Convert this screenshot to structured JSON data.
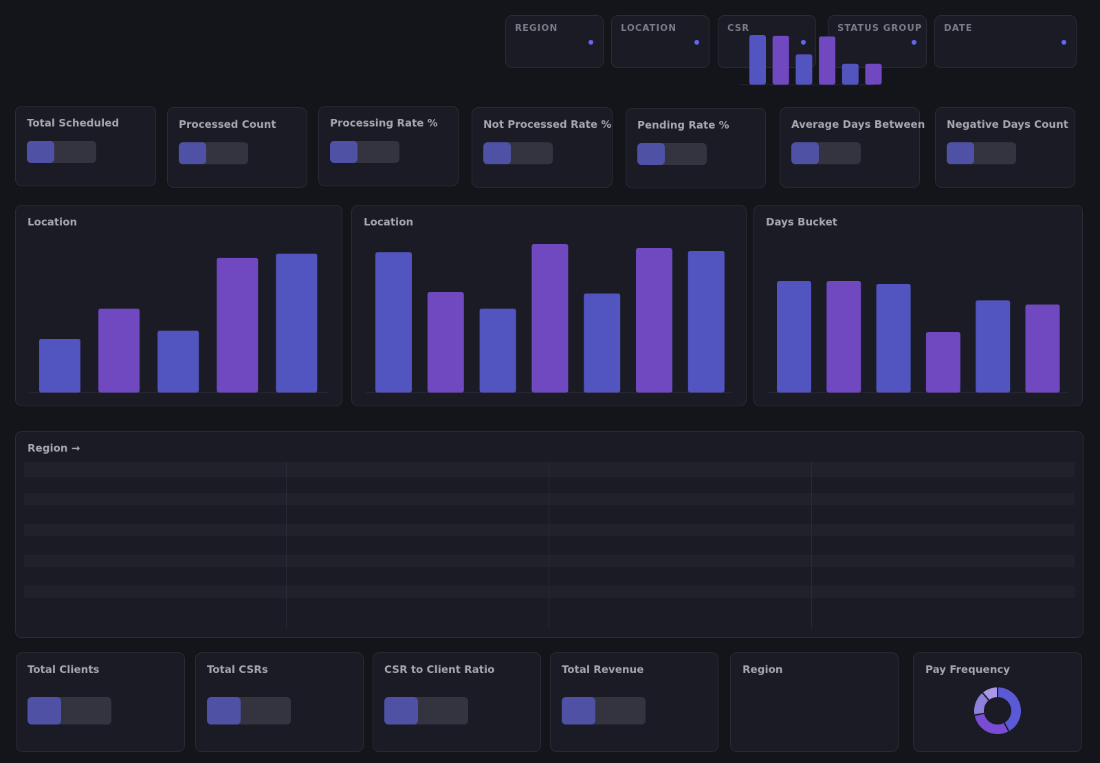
{
  "filters": [
    {
      "id": "region",
      "label": "REGION"
    },
    {
      "id": "location",
      "label": "LOCATION"
    },
    {
      "id": "csr",
      "label": "CSR"
    },
    {
      "id": "status-group",
      "label": "STATUS GROUP"
    },
    {
      "id": "date",
      "label": "DATE"
    }
  ],
  "kpis": [
    {
      "id": "total-scheduled",
      "label": "Total Scheduled",
      "fill": 0.4
    },
    {
      "id": "processed-count",
      "label": "Processed Count",
      "fill": 0.4
    },
    {
      "id": "processing-rate",
      "label": "Processing Rate %",
      "fill": 0.4
    },
    {
      "id": "not-processed-rate",
      "label": "Not Processed Rate %",
      "fill": 0.4
    },
    {
      "id": "pending-rate",
      "label": "Pending Rate %",
      "fill": 0.4
    },
    {
      "id": "average-days-between",
      "label": "Average Days Between",
      "fill": 0.4
    },
    {
      "id": "negative-days-count",
      "label": "Negative Days Count",
      "fill": 0.4
    }
  ],
  "kpis_bottom": [
    {
      "id": "total-clients",
      "label": "Total Clients",
      "fill": 0.4
    },
    {
      "id": "total-csrs",
      "label": "Total CSRs",
      "fill": 0.4
    },
    {
      "id": "csr-client-ratio",
      "label": "CSR to Client Ratio",
      "fill": 0.4
    },
    {
      "id": "total-revenue",
      "label": "Total Revenue",
      "fill": 0.4
    }
  ],
  "colors": {
    "indigo": "#5254c0",
    "purple": "#7048c0",
    "pie_indigo": "#5a5ad8",
    "pie_purple": "#7a4cd6",
    "pie_light": "#8f80dc",
    "pie_lighter": "#a898e6"
  },
  "table": {
    "title": "Region →"
  },
  "chart_data": [
    {
      "id": "location-chart-1",
      "type": "bar",
      "title": "Location",
      "values": [
        39,
        61,
        45,
        98,
        101
      ],
      "ylim": [
        0,
        110
      ]
    },
    {
      "id": "location-chart-2",
      "type": "bar",
      "title": "Location",
      "values": [
        102,
        73,
        61,
        108,
        72,
        105,
        103
      ],
      "ylim": [
        0,
        110
      ]
    },
    {
      "id": "days-bucket-chart",
      "type": "bar",
      "title": "Days Bucket",
      "values": [
        81,
        81,
        79,
        44,
        67,
        64
      ],
      "ylim": [
        0,
        110
      ]
    },
    {
      "id": "region-chart",
      "type": "bar",
      "title": "Region",
      "values": [
        69,
        68,
        42,
        67,
        29,
        29
      ],
      "ylim": [
        0,
        69
      ]
    },
    {
      "id": "pay-frequency-chart",
      "type": "pie",
      "title": "Pay Frequency",
      "values": [
        42,
        30,
        17,
        11
      ]
    }
  ]
}
